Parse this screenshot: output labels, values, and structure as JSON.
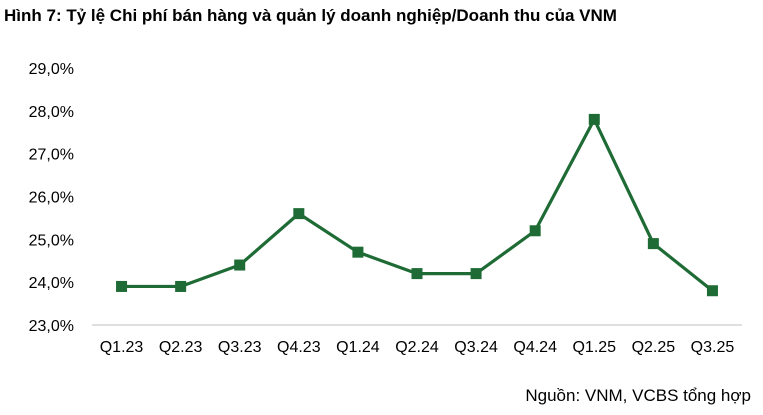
{
  "title": "Hình 7: Tỷ lệ Chi phí bán hàng và quản lý doanh nghiệp/Doanh thu của VNM",
  "source": "Nguồn: VNM, VCBS tổng hợp",
  "colors": {
    "series": "#1e6b35",
    "axis": "#bfbfbf"
  },
  "chart_data": {
    "type": "line",
    "title": "Hình 7: Tỷ lệ Chi phí bán hàng và quản lý doanh nghiệp/Doanh thu của VNM",
    "xlabel": "",
    "ylabel": "",
    "categories": [
      "Q1.23",
      "Q2.23",
      "Q3.23",
      "Q4.23",
      "Q1.24",
      "Q2.24",
      "Q3.24",
      "Q4.24",
      "Q1.25",
      "Q2.25",
      "Q3.25"
    ],
    "series": [
      {
        "values": [
          23.9,
          23.9,
          24.4,
          25.6,
          24.7,
          24.2,
          24.2,
          25.2,
          27.8,
          24.9,
          23.8
        ]
      }
    ],
    "ylim": [
      23.0,
      29.0
    ],
    "yticks": [
      "23,0%",
      "24,0%",
      "25,0%",
      "26,0%",
      "27,0%",
      "28,0%",
      "29,0%"
    ],
    "grid": false,
    "marker": "square"
  }
}
